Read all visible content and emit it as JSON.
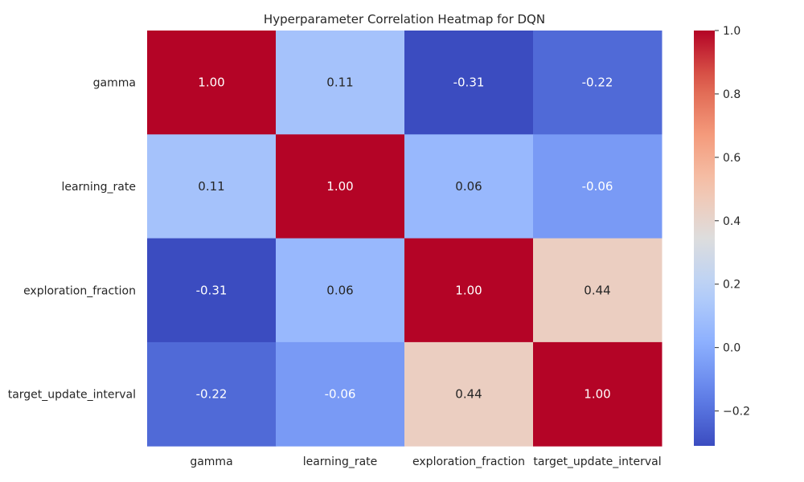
{
  "chart_data": {
    "type": "heatmap",
    "title": "Hyperparameter Correlation Heatmap for DQN",
    "xlabel": "",
    "ylabel": "",
    "rows": [
      "gamma",
      "learning_rate",
      "exploration_fraction",
      "target_update_interval"
    ],
    "columns": [
      "gamma",
      "learning_rate",
      "exploration_fraction",
      "target_update_interval"
    ],
    "values": [
      [
        1.0,
        0.11,
        -0.31,
        -0.22
      ],
      [
        0.11,
        1.0,
        0.06,
        -0.06
      ],
      [
        -0.31,
        0.06,
        1.0,
        0.44
      ],
      [
        -0.22,
        -0.06,
        0.44,
        1.0
      ]
    ],
    "cell_labels": [
      [
        "1.00",
        "0.11",
        "-0.31",
        "-0.22"
      ],
      [
        "0.11",
        "1.00",
        "0.06",
        "-0.06"
      ],
      [
        "-0.31",
        "0.06",
        "1.00",
        "0.44"
      ],
      [
        "-0.22",
        "-0.06",
        "0.44",
        "1.00"
      ]
    ],
    "colorbar": {
      "range": [
        -0.31,
        1.0
      ],
      "ticks": [
        "-0.2",
        "0.0",
        "0.2",
        "0.4",
        "0.6",
        "0.8",
        "1.0"
      ],
      "colormap": "coolwarm"
    },
    "grid": false
  }
}
